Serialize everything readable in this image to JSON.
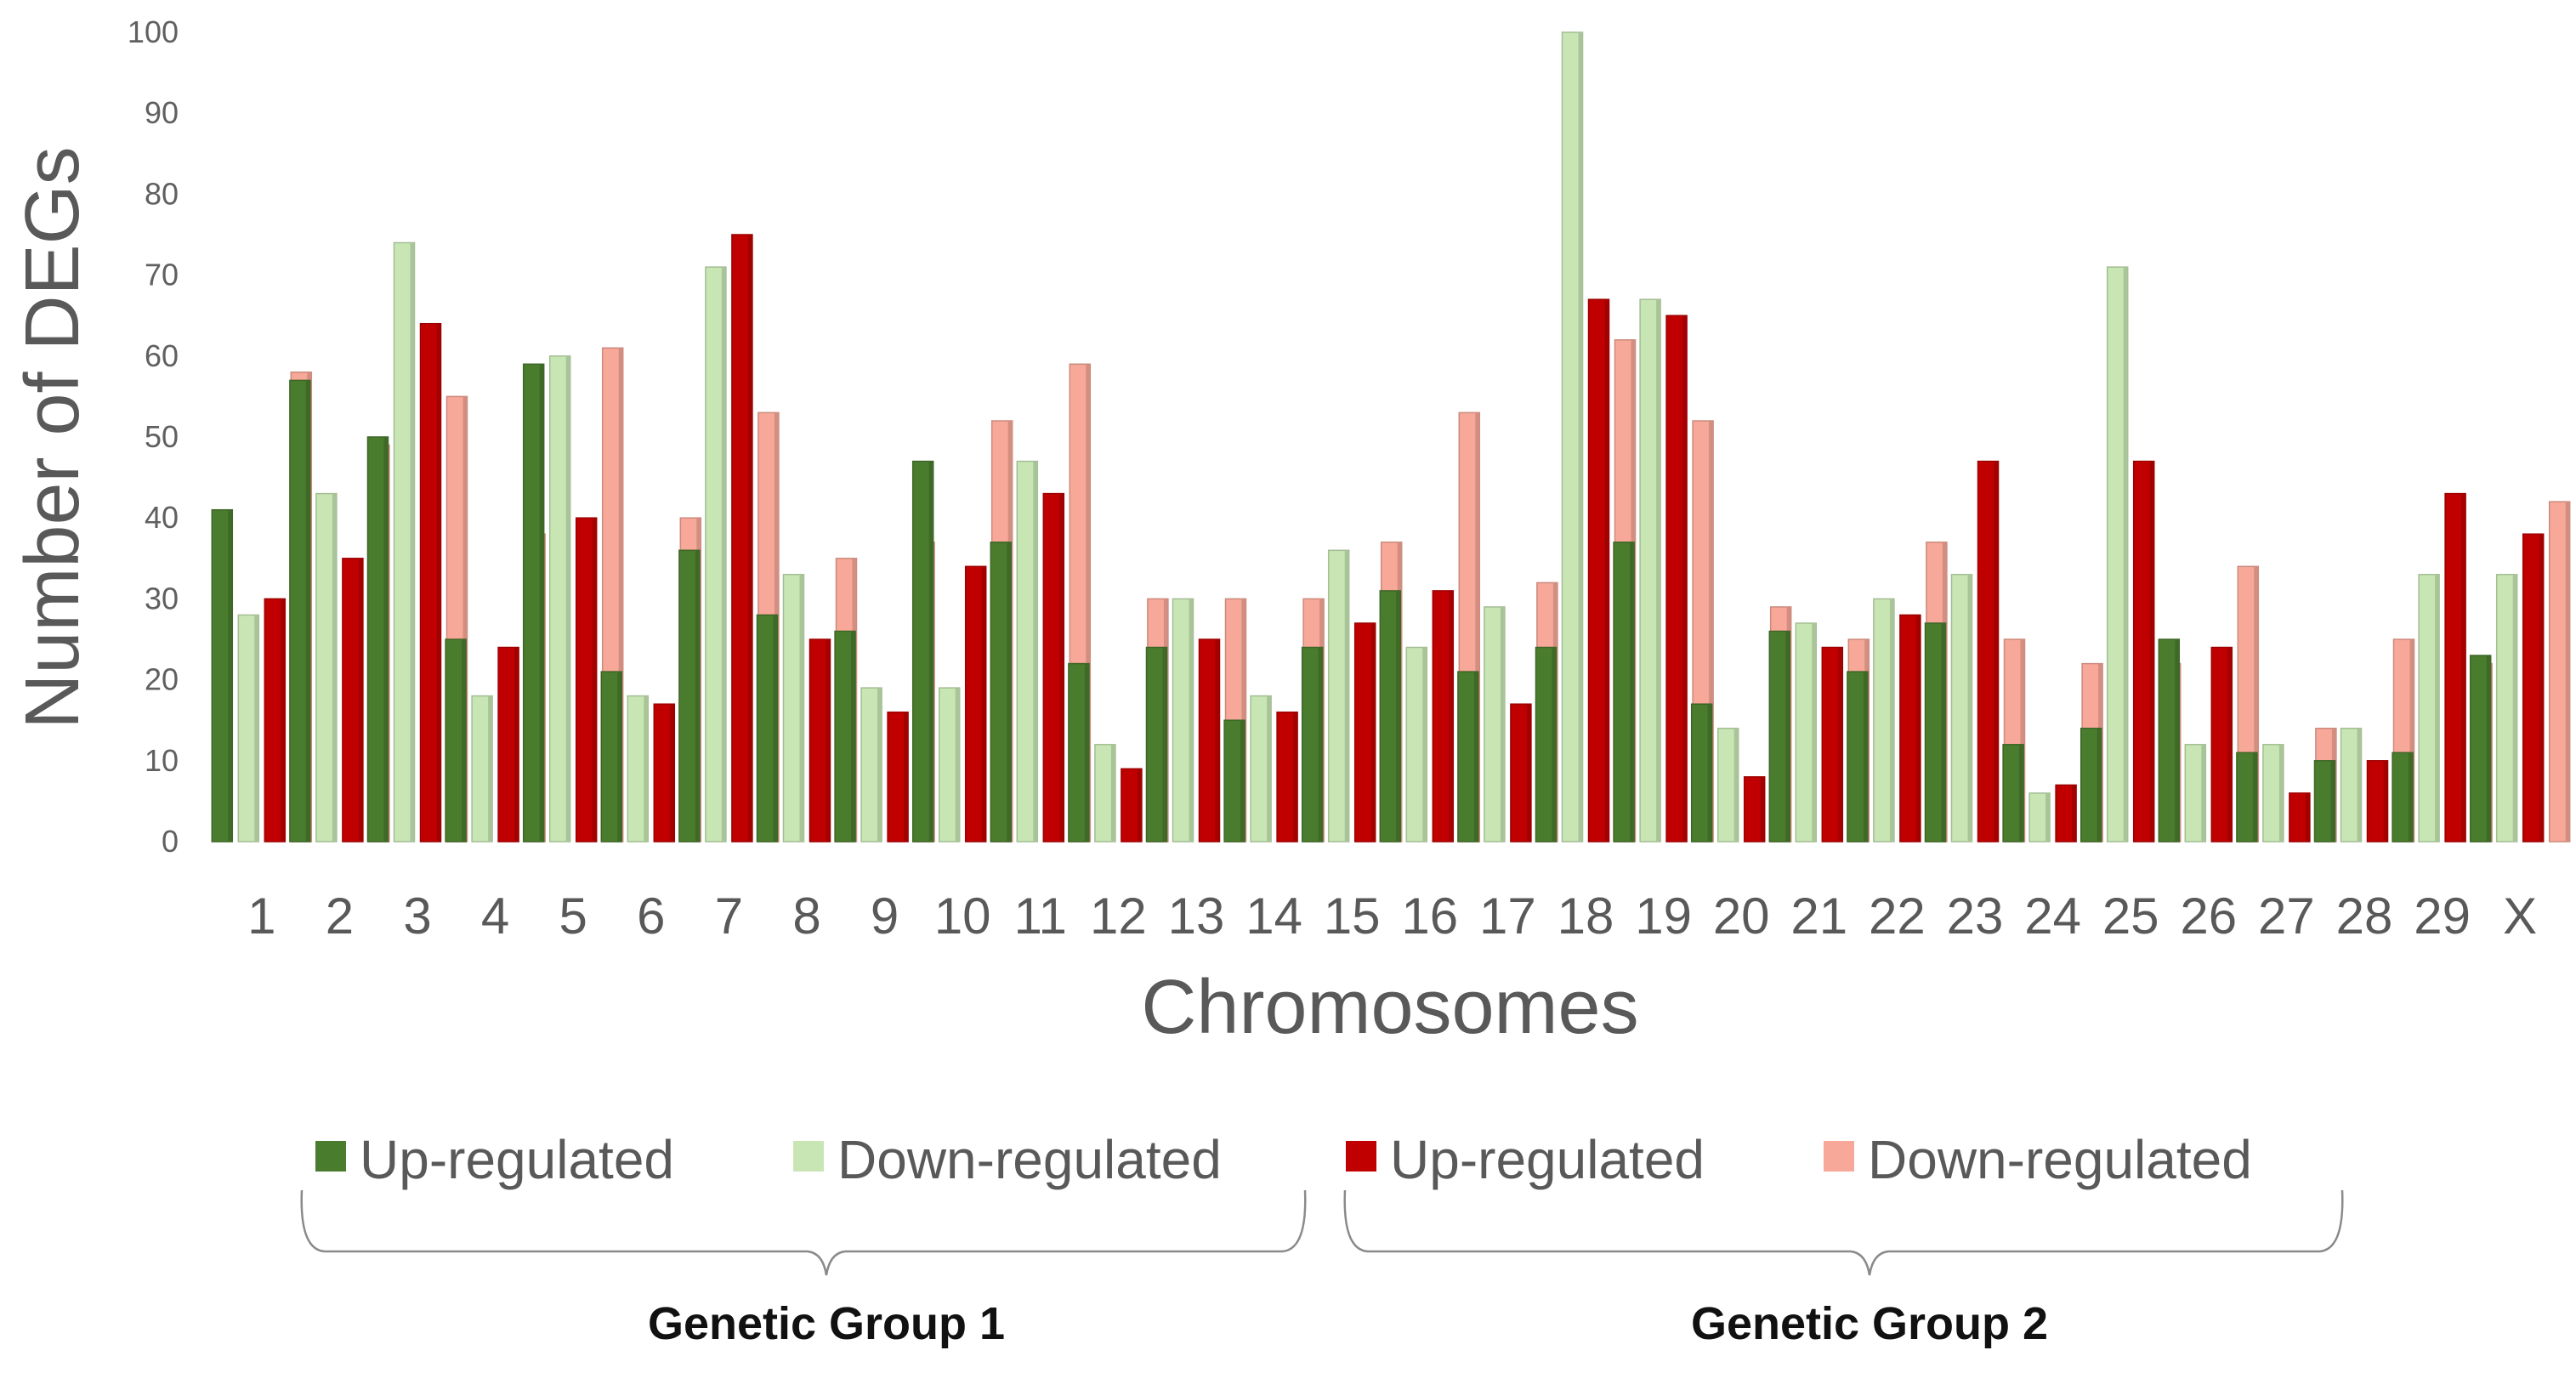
{
  "chart_data": {
    "type": "bar",
    "title": "",
    "xlabel": "Chromosomes",
    "ylabel": "Number of DEGs",
    "ylim": [
      0,
      100
    ],
    "yticks": [
      0,
      10,
      20,
      30,
      40,
      50,
      60,
      70,
      80,
      90,
      100
    ],
    "grid": false,
    "categories": [
      "1",
      "2",
      "3",
      "4",
      "5",
      "6",
      "7",
      "8",
      "9",
      "10",
      "11",
      "12",
      "13",
      "14",
      "15",
      "16",
      "17",
      "18",
      "19",
      "20",
      "21",
      "22",
      "23",
      "24",
      "25",
      "26",
      "27",
      "28",
      "29",
      "X"
    ],
    "series": [
      {
        "name": "Up-regulated",
        "group": "Genetic Group 1",
        "color": "#4a7c2e",
        "values": [
          41,
          57,
          50,
          25,
          59,
          21,
          36,
          28,
          26,
          47,
          37,
          22,
          24,
          15,
          24,
          31,
          21,
          24,
          37,
          17,
          26,
          21,
          27,
          12,
          14,
          25,
          11,
          10,
          11,
          23
        ]
      },
      {
        "name": "Down-regulated",
        "group": "Genetic Group 1",
        "color": "#c8e6b4",
        "values": [
          28,
          43,
          74,
          18,
          60,
          18,
          71,
          33,
          19,
          19,
          47,
          12,
          30,
          18,
          36,
          24,
          29,
          100,
          67,
          14,
          27,
          30,
          33,
          6,
          71,
          12,
          12,
          14,
          33,
          33
        ]
      },
      {
        "name": "Up-regulated",
        "group": "Genetic Group 2",
        "color": "#c00000",
        "values": [
          30,
          35,
          64,
          24,
          40,
          17,
          75,
          25,
          16,
          34,
          43,
          9,
          25,
          16,
          27,
          31,
          17,
          67,
          65,
          8,
          24,
          28,
          47,
          7,
          47,
          24,
          6,
          10,
          43,
          38
        ]
      },
      {
        "name": "Down-regulated",
        "group": "Genetic Group 2",
        "color": "#f7a898",
        "values": [
          58,
          49,
          55,
          38,
          61,
          40,
          53,
          35,
          37,
          52,
          59,
          30,
          30,
          30,
          37,
          53,
          32,
          62,
          52,
          29,
          25,
          37,
          25,
          22,
          22,
          34,
          14,
          25,
          22,
          42
        ]
      }
    ],
    "legend": {
      "position": "bottom",
      "groups": [
        {
          "label": "Genetic Group 1",
          "series": [
            0,
            1
          ]
        },
        {
          "label": "Genetic Group 2",
          "series": [
            2,
            3
          ]
        }
      ]
    }
  }
}
